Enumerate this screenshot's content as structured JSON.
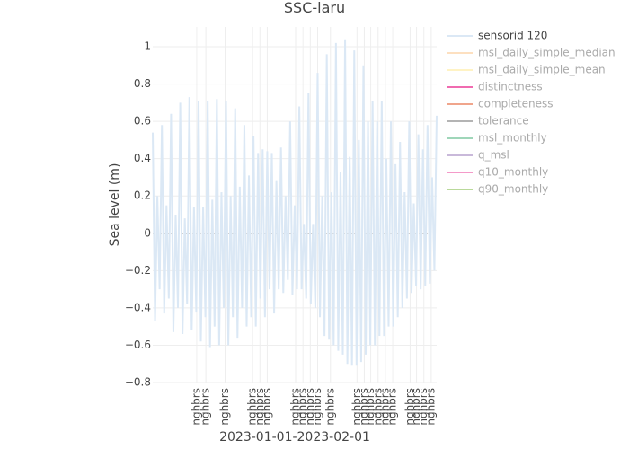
{
  "chart_data": {
    "type": "line",
    "title": "SSC-laru",
    "xlabel": "2023-01-01-2023-02-01",
    "ylabel": "Sea level (m)",
    "xlim": [
      0,
      31
    ],
    "ylim": [
      -0.8,
      1.106
    ],
    "xticks": [
      {
        "value": 4.8,
        "label": "nghbrs"
      },
      {
        "value": 5.8,
        "label": "nghbrs"
      },
      {
        "value": 7.9,
        "label": "nghbrs"
      },
      {
        "value": 10.9,
        "label": "nghbrs"
      },
      {
        "value": 11.7,
        "label": "nghbrs"
      },
      {
        "value": 12.5,
        "label": "nghbrs"
      },
      {
        "value": 15.6,
        "label": "nghbrs"
      },
      {
        "value": 16.4,
        "label": "nghbrs"
      },
      {
        "value": 17.2,
        "label": "nghbrs"
      },
      {
        "value": 18.0,
        "label": "nghbrs"
      },
      {
        "value": 19.4,
        "label": "nghbrs"
      },
      {
        "value": 22.3,
        "label": "nghbrs"
      },
      {
        "value": 23.1,
        "label": "nghbrs"
      },
      {
        "value": 23.8,
        "label": "nghbrs"
      },
      {
        "value": 24.6,
        "label": "nghbrs"
      },
      {
        "value": 25.4,
        "label": "nghbrs"
      },
      {
        "value": 26.2,
        "label": "nghbrs"
      },
      {
        "value": 28.1,
        "label": "nghbrs"
      },
      {
        "value": 28.8,
        "label": "nghbrs"
      },
      {
        "value": 29.6,
        "label": "nghbrs"
      },
      {
        "value": 30.4,
        "label": "nghbrs"
      }
    ],
    "yticks": [
      {
        "value": -0.8,
        "label": "−0.8"
      },
      {
        "value": -0.6,
        "label": "−0.6"
      },
      {
        "value": -0.4,
        "label": "−0.4"
      },
      {
        "value": -0.2,
        "label": "−0.2"
      },
      0,
      0.2,
      0.4,
      0.6,
      0.8,
      1
    ],
    "grid": true,
    "x": [
      0,
      0.25,
      0.5,
      0.75,
      1,
      1.25,
      1.5,
      1.75,
      2,
      2.25,
      2.5,
      2.75,
      3,
      3.25,
      3.5,
      3.75,
      4,
      4.25,
      4.5,
      4.75,
      5,
      5.25,
      5.5,
      5.75,
      6,
      6.25,
      6.5,
      6.75,
      7,
      7.25,
      7.5,
      7.75,
      8,
      8.25,
      8.5,
      8.75,
      9,
      9.25,
      9.5,
      9.75,
      10,
      10.25,
      10.5,
      10.75,
      11,
      11.25,
      11.5,
      11.75,
      12,
      12.25,
      12.5,
      12.75,
      13,
      13.25,
      13.5,
      13.75,
      14,
      14.25,
      14.5,
      14.75,
      15,
      15.25,
      15.5,
      15.75,
      16,
      16.25,
      16.5,
      16.75,
      17,
      17.25,
      17.5,
      17.75,
      18,
      18.25,
      18.5,
      18.75,
      19,
      19.25,
      19.5,
      19.75,
      20,
      20.25,
      20.5,
      20.75,
      21,
      21.25,
      21.5,
      21.75,
      22,
      22.25,
      22.5,
      22.75,
      23,
      23.25,
      23.5,
      23.75,
      24,
      24.25,
      24.5,
      24.75,
      25,
      25.25,
      25.5,
      25.75,
      26,
      26.25,
      26.5,
      26.75,
      27,
      27.25,
      27.5,
      27.75,
      28,
      28.25,
      28.5,
      28.75,
      29,
      29.25,
      29.5,
      29.75,
      30,
      30.25,
      30.5,
      30.75,
      31
    ],
    "series": [
      {
        "name": "sensorid 120",
        "color": "#dbe8f5",
        "values": [
          0.54,
          -0.47,
          0.2,
          -0.3,
          0.58,
          -0.43,
          0.15,
          -0.35,
          0.64,
          -0.53,
          0.1,
          -0.4,
          0.7,
          -0.54,
          0.08,
          -0.38,
          0.73,
          -0.52,
          0.14,
          -0.42,
          0.71,
          -0.58,
          0.14,
          -0.45,
          0.71,
          -0.61,
          0.18,
          -0.5,
          0.72,
          -0.6,
          0.22,
          -0.4,
          0.71,
          -0.6,
          0.2,
          -0.45,
          0.67,
          -0.56,
          0.25,
          -0.4,
          0.58,
          -0.5,
          0.31,
          -0.45,
          0.52,
          -0.5,
          0.43,
          -0.35,
          0.45,
          -0.45,
          0.44,
          -0.3,
          0.43,
          -0.43,
          0.28,
          -0.3,
          0.46,
          -0.32,
          0.2,
          -0.25,
          0.6,
          -0.33,
          0.15,
          -0.3,
          0.68,
          -0.3,
          0.05,
          -0.35,
          0.75,
          -0.38,
          0.05,
          -0.4,
          0.86,
          -0.45,
          0.2,
          -0.55,
          0.96,
          -0.57,
          0.22,
          -0.6,
          1.02,
          -0.63,
          0.33,
          -0.65,
          1.04,
          -0.7,
          0.41,
          -0.71,
          0.98,
          -0.71,
          0.5,
          -0.69,
          0.9,
          -0.65,
          0.6,
          -0.6,
          0.71,
          -0.6,
          0.6,
          -0.55,
          0.71,
          -0.55,
          0.4,
          -0.5,
          0.6,
          -0.5,
          0.37,
          -0.45,
          0.49,
          -0.4,
          0.22,
          -0.35,
          0.6,
          -0.32,
          0.16,
          -0.28,
          0.53,
          -0.3,
          0.45,
          -0.28,
          0.58,
          -0.27,
          0.3,
          -0.2,
          0.63
        ]
      },
      {
        "name": "msl_daily_simple_median",
        "color": "#fde0c0"
      },
      {
        "name": "msl_daily_simple_mean",
        "color": "#fff3c4"
      },
      {
        "name": "distinctness",
        "color": "#f06bb0"
      },
      {
        "name": "completeness",
        "color": "#f0a58c"
      },
      {
        "name": "tolerance",
        "color": "#b4b4b4"
      },
      {
        "name": "msl_monthly",
        "color": "#9fd6b9"
      },
      {
        "name": "q_msl",
        "color": "#c9b9da"
      },
      {
        "name": "q10_monthly",
        "color": "#f49ac9"
      },
      {
        "name": "q90_monthly",
        "color": "#b9d99a"
      }
    ]
  }
}
